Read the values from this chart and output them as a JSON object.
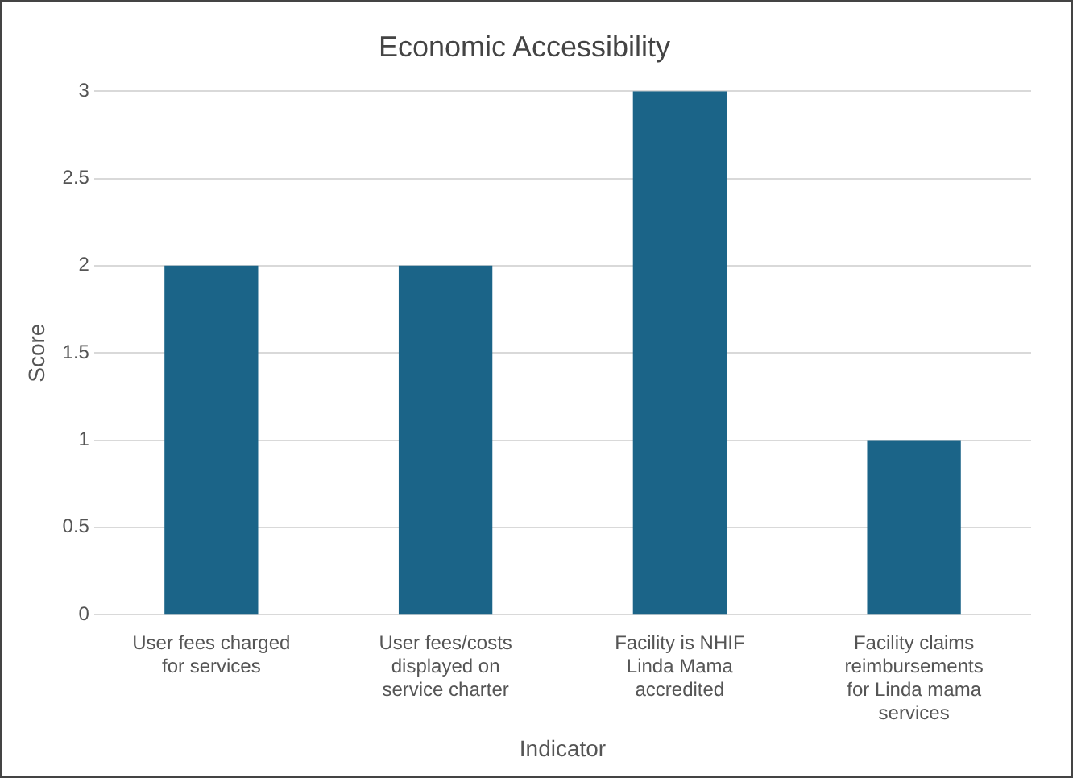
{
  "chart_data": {
    "type": "bar",
    "title": "Economic Accessibility",
    "xlabel": "Indicator",
    "ylabel": "Score",
    "categories": [
      "User fees charged for services",
      "User fees/costs displayed on service charter",
      "Facility is NHIF Linda Mama accredited",
      "Facility claims reimbursements for Linda mama services"
    ],
    "values": [
      2,
      2,
      3,
      1
    ],
    "color": "#1b6488",
    "ylim": [
      0,
      3
    ],
    "yticks": [
      0,
      0.5,
      1,
      1.5,
      2,
      2.5,
      3
    ],
    "grid": "y",
    "legend": false
  }
}
